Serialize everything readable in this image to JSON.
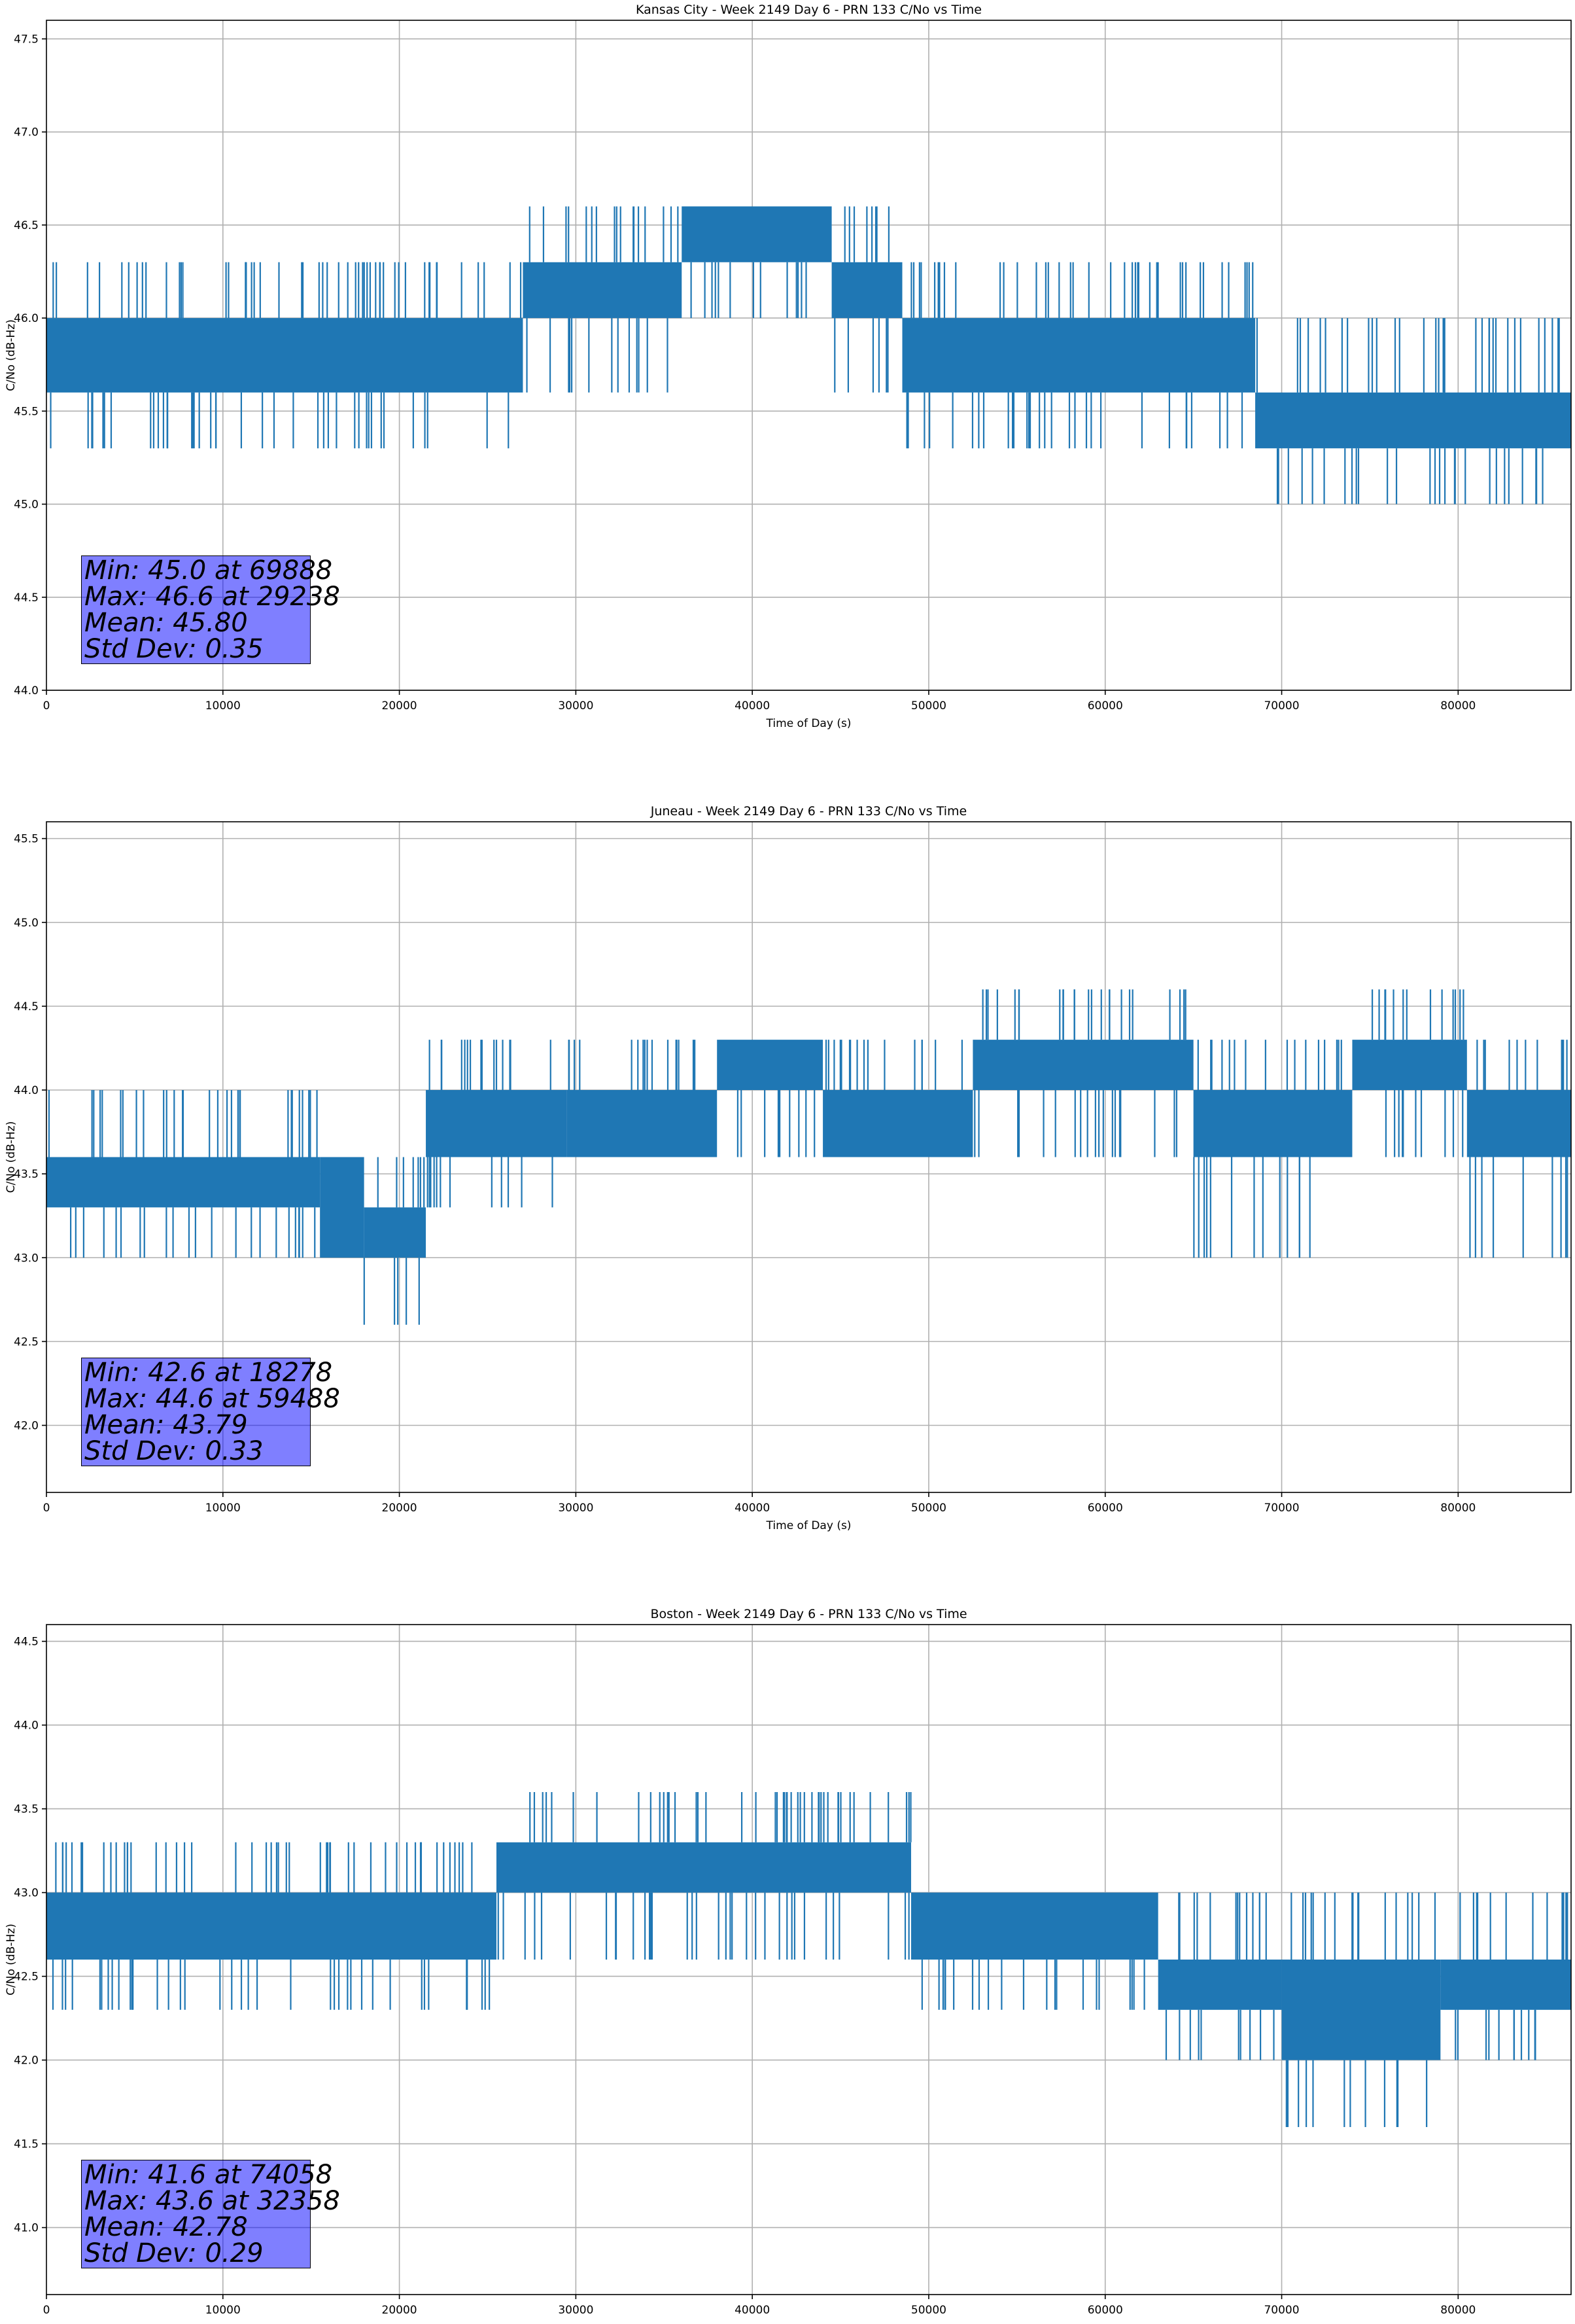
{
  "chart_data": [
    {
      "type": "line",
      "title": "Kansas City - Week 2149 Day 6 - PRN 133 C/No vs Time",
      "xlabel": "Time of Day (s)",
      "ylabel": "C/No (dB-Hz)",
      "xlim": [
        0,
        86400
      ],
      "ylim": [
        44.0,
        47.6
      ],
      "xticks": [
        "0",
        "10000",
        "20000",
        "30000",
        "40000",
        "50000",
        "60000",
        "70000",
        "80000"
      ],
      "yticks": [
        "44.0",
        "44.5",
        "45.0",
        "45.5",
        "46.0",
        "46.5",
        "47.0",
        "47.5"
      ],
      "grid": true,
      "series": [
        {
          "color": "#1f77b4",
          "segments": [
            {
              "x_start": 0,
              "x_end": 27000,
              "band": [
                45.6,
                46.0
              ],
              "spikes_up": [
                46.3
              ],
              "spikes_down": [
                45.3
              ]
            },
            {
              "x_start": 27000,
              "x_end": 36000,
              "band": [
                46.0,
                46.3
              ],
              "spikes_up": [
                46.6
              ],
              "spikes_down": [
                45.6
              ]
            },
            {
              "x_start": 36000,
              "x_end": 44500,
              "band": [
                46.3,
                46.6
              ],
              "spikes_up": [],
              "spikes_down": [
                46.0
              ]
            },
            {
              "x_start": 44500,
              "x_end": 48500,
              "band": [
                46.0,
                46.3
              ],
              "spikes_up": [
                46.6
              ],
              "spikes_down": [
                45.6
              ]
            },
            {
              "x_start": 48500,
              "x_end": 68500,
              "band": [
                45.6,
                46.0
              ],
              "spikes_up": [
                46.3
              ],
              "spikes_down": [
                45.3
              ]
            },
            {
              "x_start": 68500,
              "x_end": 86400,
              "band": [
                45.3,
                45.6
              ],
              "spikes_up": [
                46.0
              ],
              "spikes_down": [
                45.0
              ]
            }
          ]
        }
      ],
      "stats": {
        "min": "Min: 45.0 at 69888",
        "max": "Max: 46.6 at 29238",
        "mean": "Mean: 45.80",
        "std": "Std Dev: 0.35"
      }
    },
    {
      "type": "line",
      "title": "Juneau - Week 2149 Day 6 - PRN 133 C/No vs Time",
      "xlabel": "Time of Day (s)",
      "ylabel": "C/No (dB-Hz)",
      "xlim": [
        0,
        86400
      ],
      "ylim": [
        41.6,
        45.6
      ],
      "xticks": [
        "0",
        "10000",
        "20000",
        "30000",
        "40000",
        "50000",
        "60000",
        "70000",
        "80000"
      ],
      "yticks": [
        "42.0",
        "42.5",
        "43.0",
        "43.5",
        "44.0",
        "44.5",
        "45.0",
        "45.5"
      ],
      "grid": true,
      "series": [
        {
          "color": "#1f77b4",
          "segments": [
            {
              "x_start": 0,
              "x_end": 15500,
              "band": [
                43.3,
                43.6
              ],
              "spikes_up": [
                44.0
              ],
              "spikes_down": [
                43.0
              ]
            },
            {
              "x_start": 15500,
              "x_end": 18000,
              "band": [
                43.0,
                43.6
              ],
              "spikes_up": [
                43.6
              ],
              "spikes_down": [
                43.0
              ]
            },
            {
              "x_start": 18000,
              "x_end": 21500,
              "band": [
                43.0,
                43.3
              ],
              "spikes_up": [
                43.6
              ],
              "spikes_down": [
                42.6
              ]
            },
            {
              "x_start": 21500,
              "x_end": 29500,
              "band": [
                43.6,
                44.0
              ],
              "spikes_up": [
                44.3
              ],
              "spikes_down": [
                43.3
              ]
            },
            {
              "x_start": 29500,
              "x_end": 38000,
              "band": [
                43.6,
                44.0
              ],
              "spikes_up": [
                44.3
              ],
              "spikes_down": [
                43.6
              ]
            },
            {
              "x_start": 38000,
              "x_end": 44000,
              "band": [
                44.0,
                44.3
              ],
              "spikes_up": [
                44.3
              ],
              "spikes_down": [
                43.6
              ]
            },
            {
              "x_start": 44000,
              "x_end": 52500,
              "band": [
                43.6,
                44.0
              ],
              "spikes_up": [
                44.3
              ],
              "spikes_down": [
                43.6
              ]
            },
            {
              "x_start": 52500,
              "x_end": 65000,
              "band": [
                44.0,
                44.3
              ],
              "spikes_up": [
                44.6
              ],
              "spikes_down": [
                43.6
              ]
            },
            {
              "x_start": 65000,
              "x_end": 74000,
              "band": [
                43.6,
                44.0
              ],
              "spikes_up": [
                44.3
              ],
              "spikes_down": [
                43.0
              ]
            },
            {
              "x_start": 74000,
              "x_end": 80500,
              "band": [
                44.0,
                44.3
              ],
              "spikes_up": [
                44.6
              ],
              "spikes_down": [
                43.6
              ]
            },
            {
              "x_start": 80500,
              "x_end": 86400,
              "band": [
                43.6,
                44.0
              ],
              "spikes_up": [
                44.3
              ],
              "spikes_down": [
                43.0
              ]
            }
          ]
        }
      ],
      "stats": {
        "min": "Min: 42.6 at 18278",
        "max": "Max: 44.6 at 59488",
        "mean": "Mean: 43.79",
        "std": "Std Dev: 0.33"
      }
    },
    {
      "type": "line",
      "title": "Boston - Week 2149 Day 6 - PRN 133 C/No vs Time",
      "xlabel": "Time of Day (s)",
      "ylabel": "C/No (dB-Hz)",
      "xlim": [
        0,
        86400
      ],
      "ylim": [
        40.6,
        44.6
      ],
      "xticks": [
        "0",
        "10000",
        "20000",
        "30000",
        "40000",
        "50000",
        "60000",
        "70000",
        "80000"
      ],
      "yticks": [
        "41.0",
        "41.5",
        "42.0",
        "42.5",
        "43.0",
        "43.5",
        "44.0",
        "44.5"
      ],
      "grid": true,
      "series": [
        {
          "color": "#1f77b4",
          "segments": [
            {
              "x_start": 0,
              "x_end": 25500,
              "band": [
                42.6,
                43.0
              ],
              "spikes_up": [
                43.3
              ],
              "spikes_down": [
                42.3
              ]
            },
            {
              "x_start": 25500,
              "x_end": 49000,
              "band": [
                43.0,
                43.3
              ],
              "spikes_up": [
                43.6
              ],
              "spikes_down": [
                42.6
              ]
            },
            {
              "x_start": 49000,
              "x_end": 63000,
              "band": [
                42.6,
                43.0
              ],
              "spikes_up": [
                43.0
              ],
              "spikes_down": [
                42.3
              ]
            },
            {
              "x_start": 63000,
              "x_end": 70000,
              "band": [
                42.3,
                42.6
              ],
              "spikes_up": [
                43.0
              ],
              "spikes_down": [
                42.0
              ]
            },
            {
              "x_start": 70000,
              "x_end": 79000,
              "band": [
                42.0,
                42.6
              ],
              "spikes_up": [
                43.0
              ],
              "spikes_down": [
                41.6
              ]
            },
            {
              "x_start": 79000,
              "x_end": 86400,
              "band": [
                42.3,
                42.6
              ],
              "spikes_up": [
                43.0
              ],
              "spikes_down": [
                42.0
              ]
            }
          ]
        }
      ],
      "stats": {
        "min": "Min: 41.6 at 74058",
        "max": "Max: 43.6 at 32358",
        "mean": "Mean: 42.78",
        "std": "Std Dev: 0.29"
      }
    }
  ]
}
